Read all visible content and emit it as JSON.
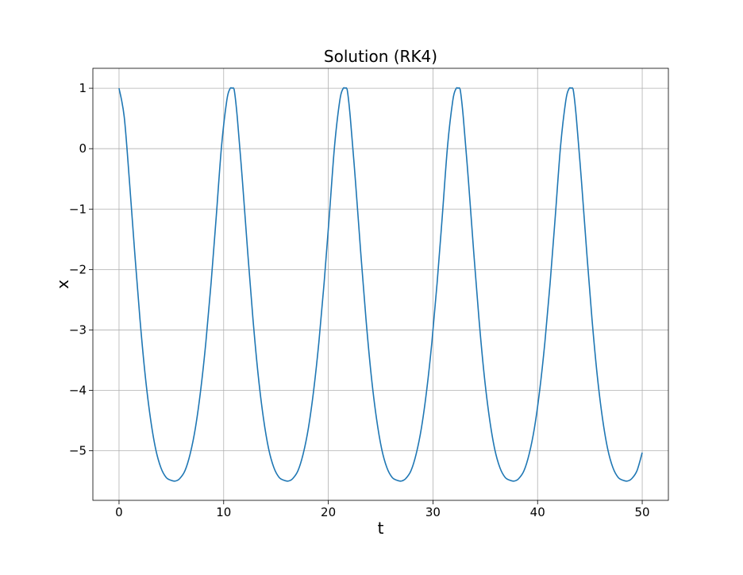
{
  "chart_data": {
    "type": "line",
    "title": "Solution (RK4)",
    "xlabel": "t",
    "ylabel": "x",
    "xlim": [
      -2.5,
      52.5
    ],
    "ylim": [
      -5.82,
      1.33
    ],
    "xticks": [
      0,
      10,
      20,
      30,
      40,
      50
    ],
    "yticks": [
      1,
      0,
      -1,
      -2,
      -3,
      -4,
      -5
    ],
    "xtick_labels": [
      "0",
      "10",
      "20",
      "30",
      "40",
      "50"
    ],
    "ytick_labels": [
      "1",
      "0",
      "−1",
      "−2",
      "−3",
      "−4",
      "−5"
    ],
    "grid": true,
    "legend": "none",
    "series": [
      {
        "color": "#1f77b4",
        "x": [
          0,
          0.5,
          1.0,
          1.5,
          2.0,
          2.5,
          3.0,
          3.5,
          4.0,
          4.5,
          5.0,
          5.4,
          5.8,
          6.3,
          6.8,
          7.3,
          7.8,
          8.3,
          8.8,
          9.3,
          9.8,
          10.3,
          10.6,
          10.8,
          11.0,
          11.3,
          11.8,
          12.3,
          12.8,
          13.3,
          13.8,
          14.3,
          14.8,
          15.3,
          15.8,
          16.2,
          16.6,
          17.1,
          17.6,
          18.1,
          18.6,
          19.1,
          19.6,
          20.1,
          20.6,
          21.1,
          21.4,
          21.6,
          21.8,
          22.1,
          22.6,
          23.1,
          23.6,
          24.1,
          24.6,
          25.1,
          25.6,
          26.1,
          26.6,
          27.0,
          27.4,
          27.9,
          28.4,
          28.9,
          29.4,
          29.9,
          30.4,
          30.9,
          31.4,
          31.9,
          32.2,
          32.4,
          32.6,
          32.9,
          33.4,
          33.9,
          34.4,
          34.9,
          35.4,
          35.9,
          36.4,
          36.9,
          37.4,
          37.8,
          38.2,
          38.7,
          39.2,
          39.7,
          40.2,
          40.7,
          41.2,
          41.7,
          42.2,
          42.7,
          43.0,
          43.2,
          43.4,
          43.7,
          44.2,
          44.7,
          45.2,
          45.7,
          46.2,
          46.7,
          47.2,
          47.7,
          48.2,
          48.6,
          49.0,
          49.5,
          50.0
        ],
        "y": [
          1.0,
          0.52,
          -0.55,
          -1.72,
          -2.82,
          -3.75,
          -4.46,
          -4.97,
          -5.28,
          -5.44,
          -5.49,
          -5.5,
          -5.46,
          -5.33,
          -5.05,
          -4.62,
          -4.0,
          -3.2,
          -2.22,
          -1.1,
          0.05,
          0.8,
          0.99,
          1.0,
          0.98,
          0.52,
          -0.55,
          -1.72,
          -2.82,
          -3.75,
          -4.46,
          -4.97,
          -5.28,
          -5.44,
          -5.49,
          -5.5,
          -5.46,
          -5.33,
          -5.05,
          -4.62,
          -4.0,
          -3.2,
          -2.22,
          -1.1,
          0.05,
          0.8,
          0.99,
          1.0,
          0.98,
          0.52,
          -0.55,
          -1.72,
          -2.82,
          -3.75,
          -4.46,
          -4.97,
          -5.28,
          -5.44,
          -5.49,
          -5.5,
          -5.46,
          -5.33,
          -5.05,
          -4.62,
          -4.0,
          -3.2,
          -2.22,
          -1.1,
          0.05,
          0.8,
          0.99,
          1.0,
          0.98,
          0.52,
          -0.55,
          -1.72,
          -2.82,
          -3.75,
          -4.46,
          -4.97,
          -5.28,
          -5.44,
          -5.49,
          -5.5,
          -5.46,
          -5.33,
          -5.05,
          -4.62,
          -4.0,
          -3.2,
          -2.22,
          -1.1,
          0.05,
          0.8,
          0.99,
          1.0,
          0.98,
          0.52,
          -0.55,
          -1.72,
          -2.82,
          -3.75,
          -4.46,
          -4.97,
          -5.28,
          -5.44,
          -5.49,
          -5.5,
          -5.46,
          -5.33,
          -5.03
        ]
      }
    ]
  }
}
